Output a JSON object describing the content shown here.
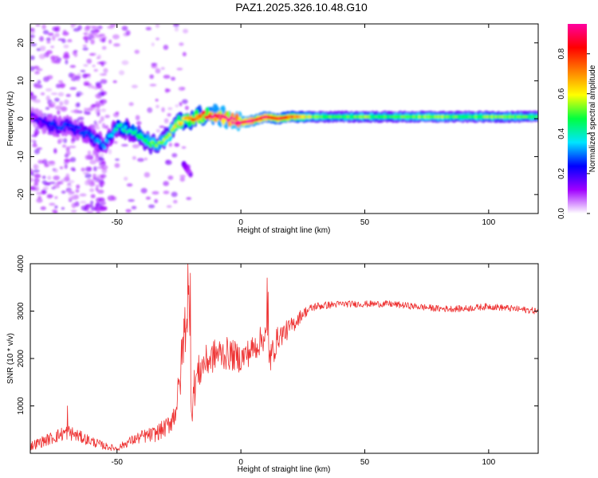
{
  "title": "PAZ1.2025.326.10.48.G10",
  "chart_data": [
    {
      "type": "heatmap",
      "xlabel": "Height of straight line (km)",
      "ylabel": "Frequency (Hz)",
      "xlim": [
        -85,
        120
      ],
      "ylim": [
        -25,
        25
      ],
      "xticks": [
        -50,
        0,
        50,
        100
      ],
      "xtick_labels": [
        "-50",
        "0",
        "50",
        "100"
      ],
      "yticks": [
        -20,
        -10,
        0,
        10,
        20
      ],
      "ytick_labels": [
        "-20",
        "-10",
        "0",
        "10",
        "20"
      ],
      "ridge": {
        "x": [
          -85,
          -80,
          -75,
          -70,
          -65,
          -60,
          -55,
          -50,
          -45,
          -40,
          -35,
          -30,
          -25,
          -20,
          -15,
          -10,
          -5,
          0,
          5,
          10,
          15,
          20,
          30,
          40,
          50,
          60,
          70,
          80,
          90,
          100,
          110,
          120
        ],
        "freq": [
          1,
          -1,
          -2,
          -2,
          -3,
          -5,
          -7,
          -2,
          -3,
          -5,
          -7,
          -5,
          -1,
          0,
          1,
          1,
          0,
          -1,
          -0.5,
          0.5,
          0,
          0.5,
          0.5,
          0.5,
          0.5,
          0.5,
          0.5,
          0.5,
          0.5,
          0.5,
          0.5,
          0.5
        ],
        "amplitude": [
          0.15,
          0.2,
          0.25,
          0.25,
          0.25,
          0.3,
          0.3,
          0.4,
          0.4,
          0.45,
          0.5,
          0.5,
          0.6,
          0.7,
          0.8,
          0.9,
          0.95,
          0.95,
          0.9,
          0.85,
          0.8,
          0.75,
          0.5,
          0.45,
          0.5,
          0.45,
          0.5,
          0.5,
          0.45,
          0.5,
          0.5,
          0.45
        ]
      },
      "branch": {
        "x": [
          -23,
          -22,
          -21,
          -20
        ],
        "freq": [
          -12,
          -13,
          -14,
          -15
        ],
        "amplitude": [
          0.3,
          0.25,
          0.2,
          0.15
        ]
      },
      "colorbar": {
        "label": "Normalized spectral amplitude",
        "range": [
          0,
          0.95
        ],
        "ticks": [
          0,
          0.2,
          0.4,
          0.6,
          0.8
        ],
        "tick_labels": [
          "0.0",
          "0.2",
          "0.4",
          "0.6",
          "0.8"
        ],
        "colors": [
          "#ffffff",
          "#a000ff",
          "#0000ff",
          "#00e5ff",
          "#00ff40",
          "#ffff00",
          "#ff8000",
          "#ff0000",
          "#ff00a0"
        ]
      }
    },
    {
      "type": "line",
      "xlabel": "Height of straight line (km)",
      "ylabel": "SNR (10 * v/v)",
      "xlim": [
        -85,
        120
      ],
      "ylim": [
        0,
        4000
      ],
      "xticks": [
        -50,
        0,
        50,
        100
      ],
      "xtick_labels": [
        "-50",
        "0",
        "50",
        "100"
      ],
      "yticks": [
        1000,
        2000,
        3000,
        4000
      ],
      "ytick_labels": [
        "1000",
        "2000",
        "3000",
        "4000"
      ],
      "color": "#ee3333",
      "x": [
        -85,
        -80,
        -75,
        -70,
        -65,
        -60,
        -55,
        -50,
        -45,
        -40,
        -35,
        -30,
        -27,
        -25,
        -23,
        -21,
        -20,
        -18,
        -15,
        -12,
        -10,
        -5,
        0,
        5,
        10,
        12,
        15,
        20,
        25,
        30,
        40,
        50,
        60,
        70,
        80,
        90,
        100,
        110,
        120
      ],
      "y": [
        150,
        250,
        350,
        450,
        350,
        250,
        150,
        100,
        250,
        350,
        400,
        550,
        800,
        1300,
        2500,
        3200,
        1000,
        1600,
        1900,
        2000,
        2100,
        2100,
        2000,
        2200,
        2500,
        2000,
        2450,
        2650,
        2950,
        3100,
        3150,
        3150,
        3150,
        3100,
        3050,
        3050,
        3100,
        3050,
        3000
      ],
      "noise": [
        100,
        120,
        140,
        170,
        130,
        110,
        80,
        60,
        100,
        140,
        170,
        200,
        300,
        450,
        650,
        500,
        500,
        400,
        350,
        350,
        350,
        350,
        300,
        300,
        300,
        350,
        250,
        200,
        120,
        90,
        70,
        70,
        70,
        70,
        70,
        70,
        70,
        70,
        70
      ],
      "spikes": [
        {
          "x": -70,
          "y": 1000
        },
        {
          "x": -21.5,
          "y": 4000
        },
        {
          "x": -20.5,
          "y": 3800
        },
        {
          "x": 10.5,
          "y": 3700
        },
        {
          "x": 11,
          "y": 3400
        }
      ]
    }
  ]
}
